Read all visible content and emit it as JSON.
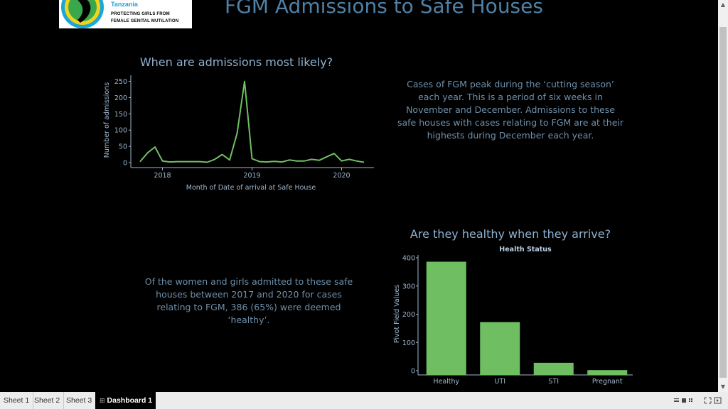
{
  "logo": {
    "country": "Tanzania",
    "line1": "PROTECTING GIRLS FROM",
    "line2": "FEMALE GENITAL MUTILATION",
    "colors": {
      "blue": "#1ba6d8",
      "yellow": "#f2d31b",
      "green": "#3aa84a"
    }
  },
  "page": {
    "title": "FGM Admissions to Safe Houses"
  },
  "line_section": {
    "title": "When are admissions most likely?",
    "description": "Cases of FGM peak during the ‘cutting season’ each year. This is a period of six weeks in November and December. Admissions to these safe houses with cases relating to FGM are at their highests during December each year."
  },
  "bar_section": {
    "title": "Are they healthy when they arrive?",
    "description": "Of the women and girls admitted to these safe houses between 2017 and 2020 for cases relating to FGM, 386 (65%) were deemed ‘healthy’."
  },
  "chart_data": [
    {
      "type": "line",
      "xlabel": "Month of Date of arrival at Safe House",
      "ylabel": "Number of admissions",
      "x_ticks": [
        "2018",
        "2019",
        "2020"
      ],
      "y_ticks": [
        0,
        50,
        100,
        150,
        200,
        250
      ],
      "ylim": [
        0,
        260
      ],
      "color": "#6fbf62",
      "points": [
        [
          "2017-10",
          3
        ],
        [
          "2017-11",
          30
        ],
        [
          "2017-12",
          48
        ],
        [
          "2018-01",
          5
        ],
        [
          "2018-02",
          2
        ],
        [
          "2018-03",
          3
        ],
        [
          "2018-04",
          3
        ],
        [
          "2018-05",
          3
        ],
        [
          "2018-06",
          3
        ],
        [
          "2018-07",
          1
        ],
        [
          "2018-08",
          10
        ],
        [
          "2018-09",
          25
        ],
        [
          "2018-10",
          8
        ],
        [
          "2018-11",
          90
        ],
        [
          "2018-12",
          250
        ],
        [
          "2019-01",
          12
        ],
        [
          "2019-02",
          3
        ],
        [
          "2019-03",
          2
        ],
        [
          "2019-04",
          4
        ],
        [
          "2019-05",
          2
        ],
        [
          "2019-06",
          8
        ],
        [
          "2019-07",
          5
        ],
        [
          "2019-08",
          5
        ],
        [
          "2019-09",
          10
        ],
        [
          "2019-10",
          7
        ],
        [
          "2019-11",
          18
        ],
        [
          "2019-12",
          28
        ],
        [
          "2020-01",
          5
        ],
        [
          "2020-02",
          10
        ],
        [
          "2020-03",
          5
        ],
        [
          "2020-04",
          1
        ]
      ],
      "grid": false
    },
    {
      "type": "bar",
      "title": "Health Status",
      "ylabel": "Pivot Field Values",
      "categories": [
        "Healthy",
        "UTI",
        "STI",
        "Pregnant"
      ],
      "values": [
        386,
        172,
        28,
        2
      ],
      "y_ticks": [
        0,
        100,
        200,
        300,
        400
      ],
      "ylim": [
        0,
        400
      ],
      "color": "#6fbf62",
      "grid": false
    }
  ],
  "tabs": [
    {
      "label": "Sheet 1"
    },
    {
      "label": "Sheet 2"
    },
    {
      "label": "Sheet 3"
    },
    {
      "label": "Dashboard 1",
      "active": true
    }
  ],
  "icons": {
    "scroll_up": "▲",
    "scroll_down": "▼",
    "dashboard_tab": "⊞"
  }
}
